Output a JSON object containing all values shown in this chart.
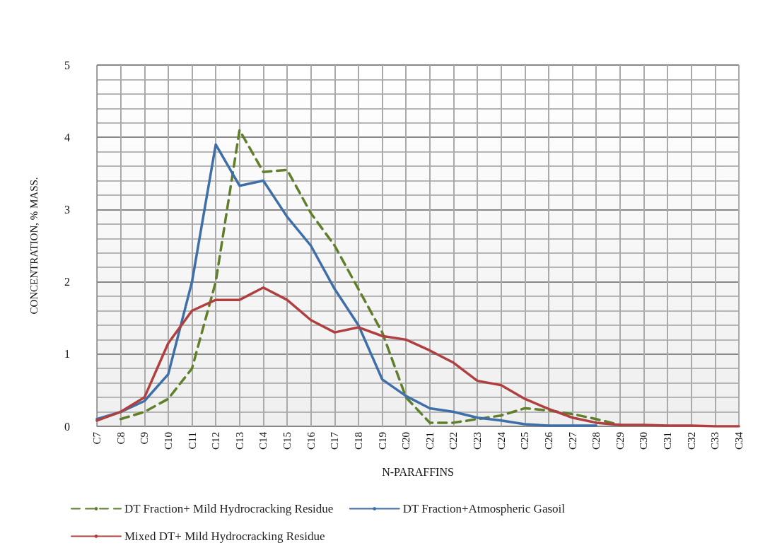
{
  "chart_data": {
    "type": "line",
    "xlabel": "N-PARAFFINS",
    "ylabel": "CONCENTRATION, % MASS.",
    "categories": [
      "C7",
      "C8",
      "C9",
      "C10",
      "C11",
      "C12",
      "C13",
      "C14",
      "C15",
      "C16",
      "C17",
      "C18",
      "C19",
      "C20",
      "C21",
      "C22",
      "C23",
      "C24",
      "C25",
      "C26",
      "C27",
      "C28",
      "C29",
      "C30",
      "C31",
      "C32",
      "C33",
      "C34"
    ],
    "series": [
      {
        "name": "DT Fraction+ Mild Hydrocracking Residue",
        "color": "#5f7f2a",
        "line_style": "dashed",
        "values": [
          null,
          0.1,
          0.2,
          0.38,
          0.8,
          2.0,
          4.1,
          3.52,
          3.55,
          2.95,
          2.5,
          1.9,
          1.3,
          0.4,
          0.05,
          0.05,
          0.1,
          0.15,
          0.25,
          0.22,
          0.17,
          0.1,
          0.02,
          null,
          null,
          null,
          null,
          null
        ]
      },
      {
        "name": "DT Fraction+Atmospheric Gasoil",
        "color": "#3f6fa8",
        "line_style": "solid",
        "values": [
          0.1,
          0.2,
          0.35,
          0.72,
          2.0,
          3.9,
          3.33,
          3.4,
          2.9,
          2.5,
          1.9,
          1.4,
          0.65,
          0.42,
          0.25,
          0.2,
          0.12,
          0.08,
          0.03,
          0.01,
          0.01,
          0.01,
          null,
          null,
          null,
          null,
          null,
          null
        ]
      },
      {
        "name": "Mixed DT+ Mild Hydrocracking Residue",
        "color": "#b04040",
        "line_style": "solid",
        "values": [
          0.08,
          0.2,
          0.4,
          1.15,
          1.6,
          1.75,
          1.75,
          1.92,
          1.75,
          1.47,
          1.3,
          1.37,
          1.25,
          1.2,
          1.05,
          0.88,
          0.63,
          0.57,
          0.38,
          0.24,
          0.12,
          0.05,
          0.02,
          0.02,
          0.01,
          0.01,
          0,
          0
        ]
      }
    ],
    "ylim": [
      0,
      5
    ],
    "yticks": [
      0,
      1,
      2,
      3,
      4,
      5
    ],
    "grid": true,
    "legend": "bottom",
    "marker": "none"
  }
}
